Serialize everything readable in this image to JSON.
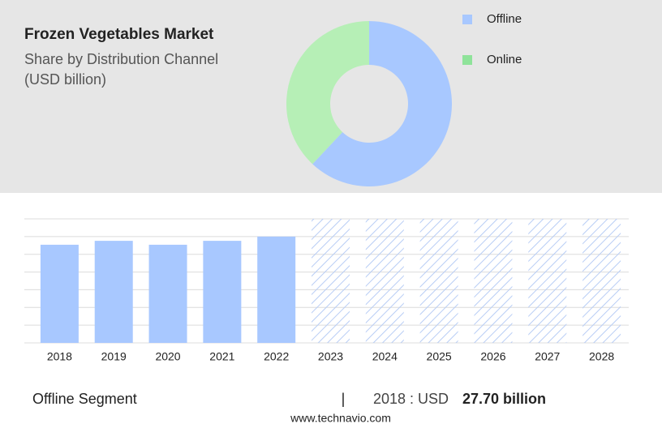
{
  "header": {
    "title": "Frozen Vegetables Market",
    "subtitle": "Share by Distribution Channel",
    "unit": "(USD billion)"
  },
  "chart_data": [
    {
      "type": "donut",
      "categories": [
        "Offline",
        "Online"
      ],
      "values": [
        62,
        38
      ],
      "colors": [
        "#a8c8ff",
        "#b6efb6"
      ],
      "legend_colors": [
        "#a8c8ff",
        "#8fe39a"
      ]
    },
    {
      "type": "bar",
      "categories": [
        "2018",
        "2019",
        "2020",
        "2021",
        "2022",
        "2023",
        "2024",
        "2025",
        "2026",
        "2027",
        "2028"
      ],
      "values": [
        27.7,
        28.8,
        27.7,
        28.8,
        30.0,
        null,
        null,
        null,
        null,
        null,
        null
      ],
      "color": "#a8c8ff",
      "ylim": [
        0,
        35
      ],
      "forecast_hatch": true
    }
  ],
  "footer": {
    "segment": "Offline Segment",
    "separator": "|",
    "year_label": "2018 : USD",
    "value_label": "27.70 billion"
  },
  "source": "www.technavio.com"
}
